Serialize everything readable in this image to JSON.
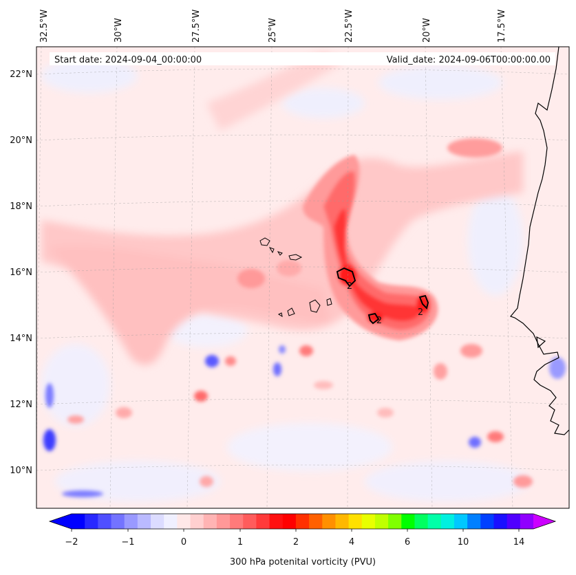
{
  "map": {
    "start_date": "Start date: 2024-09-04_00:00:00",
    "valid_date": "Valid_date: 2024-09-06T00:00:00.00",
    "lon_labels": [
      "32.5°W",
      "30°W",
      "27.5°W",
      "25°W",
      "22.5°W",
      "20°W",
      "17.5°W"
    ],
    "lat_labels": [
      "22°N",
      "20°N",
      "18°N",
      "16°N",
      "14°N",
      "12°N",
      "10°N"
    ],
    "contour_label": "2",
    "contour_label_count": 3
  },
  "colorbar": {
    "title": "300 hPa potenital vorticity (PVU)",
    "tick_labels": [
      "−2",
      "−1",
      "0",
      "1",
      "2",
      "4",
      "6",
      "10",
      "14"
    ],
    "colors": [
      "#0000ff",
      "#2828ff",
      "#4f4fff",
      "#7373ff",
      "#9999ff",
      "#babaff",
      "#dcdcff",
      "#f0f0ff",
      "#ffe8e8",
      "#ffd0d0",
      "#ffb4b4",
      "#ff9898",
      "#ff7a7a",
      "#ff5c5c",
      "#ff3a3a",
      "#ff1010",
      "#ff0000",
      "#ff3000",
      "#ff6000",
      "#ff9000",
      "#ffb800",
      "#ffe000",
      "#e8ff00",
      "#c0ff00",
      "#80ff00",
      "#00ff00",
      "#00ff60",
      "#00ffa8",
      "#00f0e0",
      "#00c8ff",
      "#0080ff",
      "#0040ff",
      "#1a10ff",
      "#5000ff",
      "#9000ff"
    ],
    "extend_min_color": "#0000ff",
    "extend_max_color": "#cc00ff"
  }
}
